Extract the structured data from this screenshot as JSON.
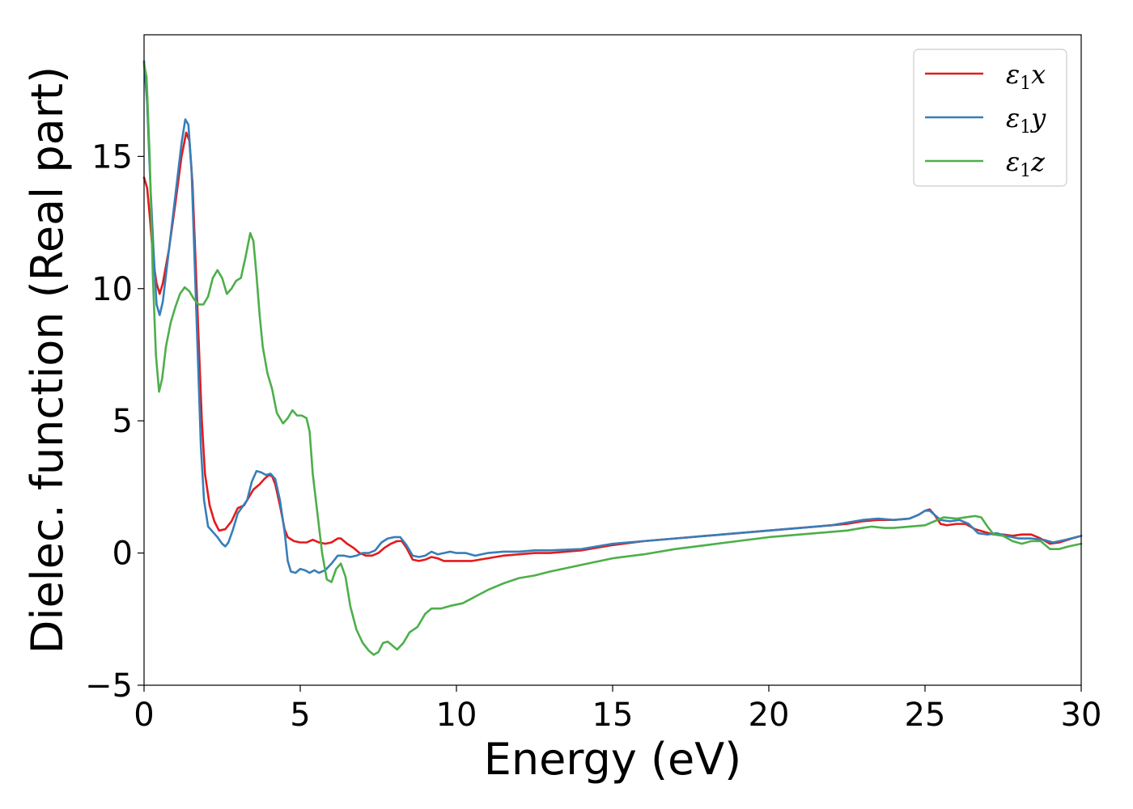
{
  "chart_data": {
    "type": "line",
    "title": "",
    "xlabel": "Energy (eV)",
    "ylabel": "Dielec. function (Real part)",
    "xlim": [
      0,
      30
    ],
    "ylim": [
      -5,
      19.6
    ],
    "xticks": [
      0,
      5,
      10,
      15,
      20,
      25,
      30
    ],
    "yticks": [
      -5,
      0,
      5,
      10,
      15
    ],
    "xtick_labels": [
      "0",
      "5",
      "10",
      "15",
      "20",
      "25",
      "30"
    ],
    "ytick_labels": [
      "−5",
      "0",
      "5",
      "10",
      "15"
    ],
    "grid": false,
    "legend": {
      "position": "top-right"
    },
    "series": [
      {
        "name": "ε₁x",
        "legend_main": "ε",
        "legend_sub": "1",
        "legend_var": "x",
        "color": "#e41a1c",
        "points": [
          [
            0,
            14.2
          ],
          [
            0.1,
            13.8
          ],
          [
            0.2,
            12.5
          ],
          [
            0.3,
            11
          ],
          [
            0.4,
            10.2
          ],
          [
            0.5,
            9.8
          ],
          [
            0.6,
            10.2
          ],
          [
            0.8,
            11.5
          ],
          [
            1.0,
            13.2
          ],
          [
            1.2,
            15.0
          ],
          [
            1.35,
            15.9
          ],
          [
            1.45,
            15.6
          ],
          [
            1.55,
            14.0
          ],
          [
            1.65,
            11.0
          ],
          [
            1.75,
            8.0
          ],
          [
            1.85,
            5.0
          ],
          [
            1.95,
            3.0
          ],
          [
            2.1,
            1.8
          ],
          [
            2.25,
            1.2
          ],
          [
            2.4,
            0.85
          ],
          [
            2.6,
            0.9
          ],
          [
            2.8,
            1.2
          ],
          [
            3.0,
            1.7
          ],
          [
            3.2,
            1.8
          ],
          [
            3.3,
            2.0
          ],
          [
            3.5,
            2.4
          ],
          [
            3.7,
            2.6
          ],
          [
            3.85,
            2.8
          ],
          [
            4.0,
            2.95
          ],
          [
            4.1,
            2.9
          ],
          [
            4.2,
            2.6
          ],
          [
            4.35,
            1.8
          ],
          [
            4.5,
            0.9
          ],
          [
            4.6,
            0.6
          ],
          [
            4.8,
            0.45
          ],
          [
            5.0,
            0.4
          ],
          [
            5.2,
            0.4
          ],
          [
            5.4,
            0.5
          ],
          [
            5.6,
            0.4
          ],
          [
            5.8,
            0.35
          ],
          [
            6.0,
            0.4
          ],
          [
            6.2,
            0.55
          ],
          [
            6.3,
            0.55
          ],
          [
            6.5,
            0.35
          ],
          [
            6.7,
            0.2
          ],
          [
            6.9,
            0
          ],
          [
            7.1,
            -0.1
          ],
          [
            7.3,
            -0.1
          ],
          [
            7.5,
            0
          ],
          [
            7.7,
            0.2
          ],
          [
            7.9,
            0.35
          ],
          [
            8.1,
            0.45
          ],
          [
            8.25,
            0.45
          ],
          [
            8.4,
            0.2
          ],
          [
            8.6,
            -0.25
          ],
          [
            8.8,
            -0.3
          ],
          [
            9.0,
            -0.25
          ],
          [
            9.2,
            -0.15
          ],
          [
            9.4,
            -0.2
          ],
          [
            9.6,
            -0.3
          ],
          [
            10,
            -0.3
          ],
          [
            10.5,
            -0.3
          ],
          [
            11,
            -0.2
          ],
          [
            11.5,
            -0.1
          ],
          [
            12,
            -0.05
          ],
          [
            12.5,
            0
          ],
          [
            13,
            0
          ],
          [
            14,
            0.1
          ],
          [
            15,
            0.3
          ],
          [
            16,
            0.45
          ],
          [
            17,
            0.55
          ],
          [
            18,
            0.65
          ],
          [
            19,
            0.75
          ],
          [
            20,
            0.85
          ],
          [
            21,
            0.95
          ],
          [
            22,
            1.05
          ],
          [
            22.5,
            1.1
          ],
          [
            23,
            1.2
          ],
          [
            23.5,
            1.25
          ],
          [
            24,
            1.25
          ],
          [
            24.5,
            1.3
          ],
          [
            24.8,
            1.45
          ],
          [
            25.0,
            1.6
          ],
          [
            25.15,
            1.65
          ],
          [
            25.3,
            1.45
          ],
          [
            25.5,
            1.1
          ],
          [
            25.7,
            1.05
          ],
          [
            26,
            1.1
          ],
          [
            26.3,
            1.1
          ],
          [
            26.6,
            0.9
          ],
          [
            26.9,
            0.8
          ],
          [
            27.2,
            0.7
          ],
          [
            27.5,
            0.7
          ],
          [
            27.8,
            0.65
          ],
          [
            28.1,
            0.7
          ],
          [
            28.4,
            0.7
          ],
          [
            28.7,
            0.55
          ],
          [
            29.0,
            0.35
          ],
          [
            29.3,
            0.4
          ],
          [
            29.7,
            0.55
          ],
          [
            30,
            0.65
          ]
        ]
      },
      {
        "name": "ε₁y",
        "legend_main": "ε",
        "legend_sub": "1",
        "legend_var": "y",
        "color": "#377eb8",
        "points": [
          [
            0,
            18.6
          ],
          [
            0.1,
            17
          ],
          [
            0.2,
            14
          ],
          [
            0.3,
            11.5
          ],
          [
            0.4,
            9.4
          ],
          [
            0.5,
            9.0
          ],
          [
            0.6,
            9.5
          ],
          [
            0.8,
            11.5
          ],
          [
            1.0,
            13.5
          ],
          [
            1.2,
            15.5
          ],
          [
            1.32,
            16.4
          ],
          [
            1.42,
            16.2
          ],
          [
            1.52,
            14.5
          ],
          [
            1.62,
            11.0
          ],
          [
            1.72,
            7.5
          ],
          [
            1.82,
            4.0
          ],
          [
            1.92,
            2.0
          ],
          [
            2.05,
            1.0
          ],
          [
            2.2,
            0.8
          ],
          [
            2.35,
            0.6
          ],
          [
            2.5,
            0.35
          ],
          [
            2.6,
            0.25
          ],
          [
            2.7,
            0.4
          ],
          [
            2.85,
            0.9
          ],
          [
            3.0,
            1.5
          ],
          [
            3.15,
            1.75
          ],
          [
            3.3,
            2.0
          ],
          [
            3.45,
            2.7
          ],
          [
            3.6,
            3.1
          ],
          [
            3.75,
            3.05
          ],
          [
            3.9,
            2.95
          ],
          [
            4.05,
            3.0
          ],
          [
            4.2,
            2.8
          ],
          [
            4.35,
            2.0
          ],
          [
            4.5,
            0.8
          ],
          [
            4.6,
            -0.3
          ],
          [
            4.7,
            -0.7
          ],
          [
            4.85,
            -0.75
          ],
          [
            5.0,
            -0.6
          ],
          [
            5.15,
            -0.65
          ],
          [
            5.3,
            -0.75
          ],
          [
            5.45,
            -0.65
          ],
          [
            5.6,
            -0.75
          ],
          [
            5.8,
            -0.65
          ],
          [
            6.0,
            -0.4
          ],
          [
            6.2,
            -0.1
          ],
          [
            6.4,
            -0.1
          ],
          [
            6.6,
            -0.15
          ],
          [
            6.8,
            -0.1
          ],
          [
            7.0,
            0
          ],
          [
            7.2,
            0
          ],
          [
            7.4,
            0.1
          ],
          [
            7.6,
            0.4
          ],
          [
            7.8,
            0.55
          ],
          [
            8.0,
            0.6
          ],
          [
            8.2,
            0.6
          ],
          [
            8.4,
            0.3
          ],
          [
            8.6,
            -0.1
          ],
          [
            8.8,
            -0.15
          ],
          [
            9.0,
            -0.1
          ],
          [
            9.2,
            0.05
          ],
          [
            9.4,
            -0.05
          ],
          [
            9.6,
            0
          ],
          [
            9.8,
            0.05
          ],
          [
            10,
            0
          ],
          [
            10.3,
            0
          ],
          [
            10.6,
            -0.1
          ],
          [
            11,
            0
          ],
          [
            11.5,
            0.05
          ],
          [
            12,
            0.05
          ],
          [
            12.5,
            0.1
          ],
          [
            13,
            0.1
          ],
          [
            14,
            0.15
          ],
          [
            15,
            0.35
          ],
          [
            16,
            0.45
          ],
          [
            17,
            0.55
          ],
          [
            18,
            0.65
          ],
          [
            19,
            0.75
          ],
          [
            20,
            0.85
          ],
          [
            21,
            0.95
          ],
          [
            22,
            1.05
          ],
          [
            22.5,
            1.15
          ],
          [
            23,
            1.25
          ],
          [
            23.5,
            1.3
          ],
          [
            24,
            1.25
          ],
          [
            24.5,
            1.3
          ],
          [
            24.8,
            1.45
          ],
          [
            25.0,
            1.6
          ],
          [
            25.15,
            1.6
          ],
          [
            25.3,
            1.45
          ],
          [
            25.5,
            1.25
          ],
          [
            25.8,
            1.2
          ],
          [
            26.1,
            1.25
          ],
          [
            26.4,
            1.1
          ],
          [
            26.7,
            0.75
          ],
          [
            27.0,
            0.7
          ],
          [
            27.3,
            0.75
          ],
          [
            27.6,
            0.65
          ],
          [
            28,
            0.55
          ],
          [
            28.4,
            0.55
          ],
          [
            28.8,
            0.5
          ],
          [
            29.1,
            0.4
          ],
          [
            29.5,
            0.5
          ],
          [
            30,
            0.65
          ]
        ]
      },
      {
        "name": "ε₁z",
        "legend_main": "ε",
        "legend_sub": "1",
        "legend_var": "z",
        "color": "#4daf4a",
        "points": [
          [
            0,
            18.5
          ],
          [
            0.08,
            18
          ],
          [
            0.18,
            15
          ],
          [
            0.28,
            10.5
          ],
          [
            0.38,
            7.5
          ],
          [
            0.48,
            6.1
          ],
          [
            0.58,
            6.6
          ],
          [
            0.7,
            7.8
          ],
          [
            0.85,
            8.7
          ],
          [
            1.0,
            9.3
          ],
          [
            1.15,
            9.8
          ],
          [
            1.3,
            10.05
          ],
          [
            1.45,
            9.9
          ],
          [
            1.6,
            9.6
          ],
          [
            1.75,
            9.4
          ],
          [
            1.9,
            9.4
          ],
          [
            2.05,
            9.7
          ],
          [
            2.2,
            10.4
          ],
          [
            2.35,
            10.7
          ],
          [
            2.5,
            10.4
          ],
          [
            2.65,
            9.8
          ],
          [
            2.8,
            10.0
          ],
          [
            2.95,
            10.3
          ],
          [
            3.1,
            10.4
          ],
          [
            3.25,
            11.2
          ],
          [
            3.4,
            12.1
          ],
          [
            3.5,
            11.8
          ],
          [
            3.6,
            10.5
          ],
          [
            3.7,
            9.0
          ],
          [
            3.8,
            7.8
          ],
          [
            3.95,
            6.8
          ],
          [
            4.1,
            6.2
          ],
          [
            4.25,
            5.3
          ],
          [
            4.45,
            4.9
          ],
          [
            4.6,
            5.1
          ],
          [
            4.75,
            5.4
          ],
          [
            4.9,
            5.2
          ],
          [
            5.05,
            5.2
          ],
          [
            5.2,
            5.1
          ],
          [
            5.3,
            4.6
          ],
          [
            5.4,
            3.0
          ],
          [
            5.55,
            1.5
          ],
          [
            5.7,
            0
          ],
          [
            5.85,
            -1.0
          ],
          [
            6.0,
            -1.1
          ],
          [
            6.15,
            -0.6
          ],
          [
            6.3,
            -0.4
          ],
          [
            6.45,
            -0.9
          ],
          [
            6.6,
            -2.0
          ],
          [
            6.8,
            -2.9
          ],
          [
            7.0,
            -3.4
          ],
          [
            7.2,
            -3.7
          ],
          [
            7.35,
            -3.85
          ],
          [
            7.5,
            -3.75
          ],
          [
            7.65,
            -3.4
          ],
          [
            7.8,
            -3.35
          ],
          [
            7.95,
            -3.5
          ],
          [
            8.1,
            -3.65
          ],
          [
            8.3,
            -3.4
          ],
          [
            8.5,
            -3.0
          ],
          [
            8.75,
            -2.8
          ],
          [
            9.0,
            -2.3
          ],
          [
            9.2,
            -2.1
          ],
          [
            9.5,
            -2.1
          ],
          [
            9.8,
            -2.0
          ],
          [
            10.2,
            -1.9
          ],
          [
            10.6,
            -1.65
          ],
          [
            11,
            -1.4
          ],
          [
            11.5,
            -1.15
          ],
          [
            12,
            -0.95
          ],
          [
            12.5,
            -0.85
          ],
          [
            13,
            -0.7
          ],
          [
            14,
            -0.45
          ],
          [
            15,
            -0.2
          ],
          [
            16,
            -0.05
          ],
          [
            17,
            0.15
          ],
          [
            18,
            0.3
          ],
          [
            19,
            0.45
          ],
          [
            20,
            0.6
          ],
          [
            21,
            0.7
          ],
          [
            22,
            0.8
          ],
          [
            22.5,
            0.85
          ],
          [
            23,
            0.95
          ],
          [
            23.3,
            1.0
          ],
          [
            23.7,
            0.95
          ],
          [
            24,
            0.95
          ],
          [
            24.5,
            1.0
          ],
          [
            25,
            1.05
          ],
          [
            25.3,
            1.2
          ],
          [
            25.6,
            1.35
          ],
          [
            26,
            1.3
          ],
          [
            26.3,
            1.35
          ],
          [
            26.6,
            1.4
          ],
          [
            26.8,
            1.35
          ],
          [
            27.0,
            1.0
          ],
          [
            27.2,
            0.7
          ],
          [
            27.5,
            0.65
          ],
          [
            27.8,
            0.45
          ],
          [
            28.1,
            0.35
          ],
          [
            28.4,
            0.45
          ],
          [
            28.7,
            0.45
          ],
          [
            29.0,
            0.15
          ],
          [
            29.3,
            0.15
          ],
          [
            29.6,
            0.25
          ],
          [
            30,
            0.35
          ]
        ]
      }
    ]
  }
}
